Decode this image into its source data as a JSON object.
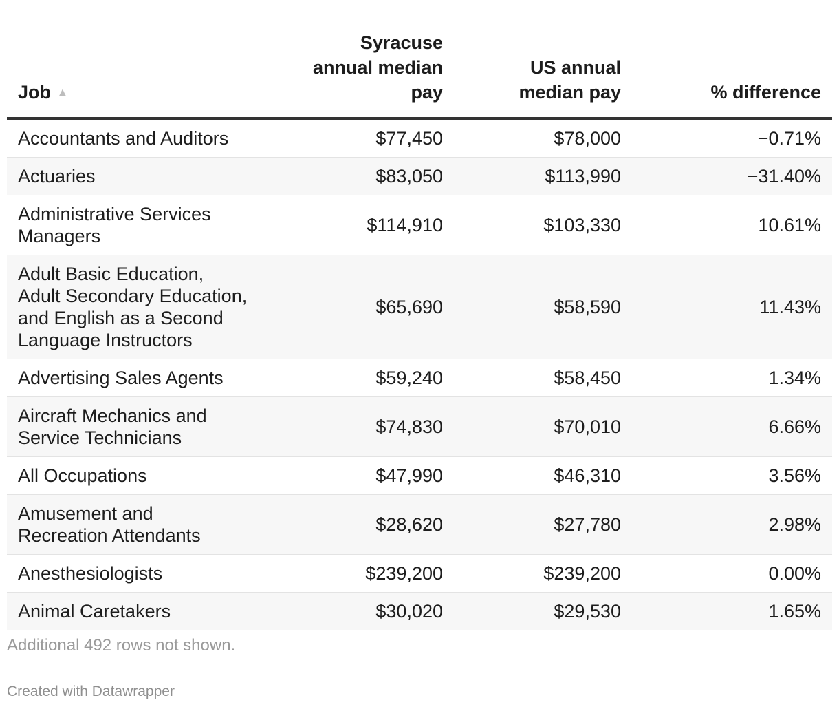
{
  "chart_data": {
    "type": "table",
    "columns": [
      {
        "label_lines": [
          "Job"
        ],
        "sort_indicator": "▲"
      },
      {
        "label_lines": [
          "Syracuse",
          "annual median",
          "pay"
        ]
      },
      {
        "label_lines": [
          "US annual",
          "median pay"
        ]
      },
      {
        "label_lines": [
          "% difference"
        ]
      }
    ],
    "rows": [
      {
        "job_lines": [
          "Accountants and Auditors"
        ],
        "syracuse": "$77,450",
        "us": "$78,000",
        "diff": "−0.71%"
      },
      {
        "job_lines": [
          "Actuaries"
        ],
        "syracuse": "$83,050",
        "us": "$113,990",
        "diff": "−31.40%"
      },
      {
        "job_lines": [
          "Administrative Services",
          "Managers"
        ],
        "syracuse": "$114,910",
        "us": "$103,330",
        "diff": "10.61%"
      },
      {
        "job_lines": [
          "Adult Basic Education,",
          "Adult Secondary Education,",
          "and English as a Second",
          "Language Instructors"
        ],
        "syracuse": "$65,690",
        "us": "$58,590",
        "diff": "11.43%"
      },
      {
        "job_lines": [
          "Advertising Sales Agents"
        ],
        "syracuse": "$59,240",
        "us": "$58,450",
        "diff": "1.34%"
      },
      {
        "job_lines": [
          "Aircraft Mechanics and",
          "Service Technicians"
        ],
        "syracuse": "$74,830",
        "us": "$70,010",
        "diff": "6.66%"
      },
      {
        "job_lines": [
          "All Occupations"
        ],
        "syracuse": "$47,990",
        "us": "$46,310",
        "diff": "3.56%"
      },
      {
        "job_lines": [
          "Amusement and",
          "Recreation Attendants"
        ],
        "syracuse": "$28,620",
        "us": "$27,780",
        "diff": "2.98%"
      },
      {
        "job_lines": [
          "Anesthesiologists"
        ],
        "syracuse": "$239,200",
        "us": "$239,200",
        "diff": "0.00%"
      },
      {
        "job_lines": [
          "Animal Caretakers"
        ],
        "syracuse": "$30,020",
        "us": "$29,530",
        "diff": "1.65%"
      }
    ],
    "note": "Additional 492 rows not shown."
  },
  "footer": {
    "credit": "Created with Datawrapper"
  }
}
